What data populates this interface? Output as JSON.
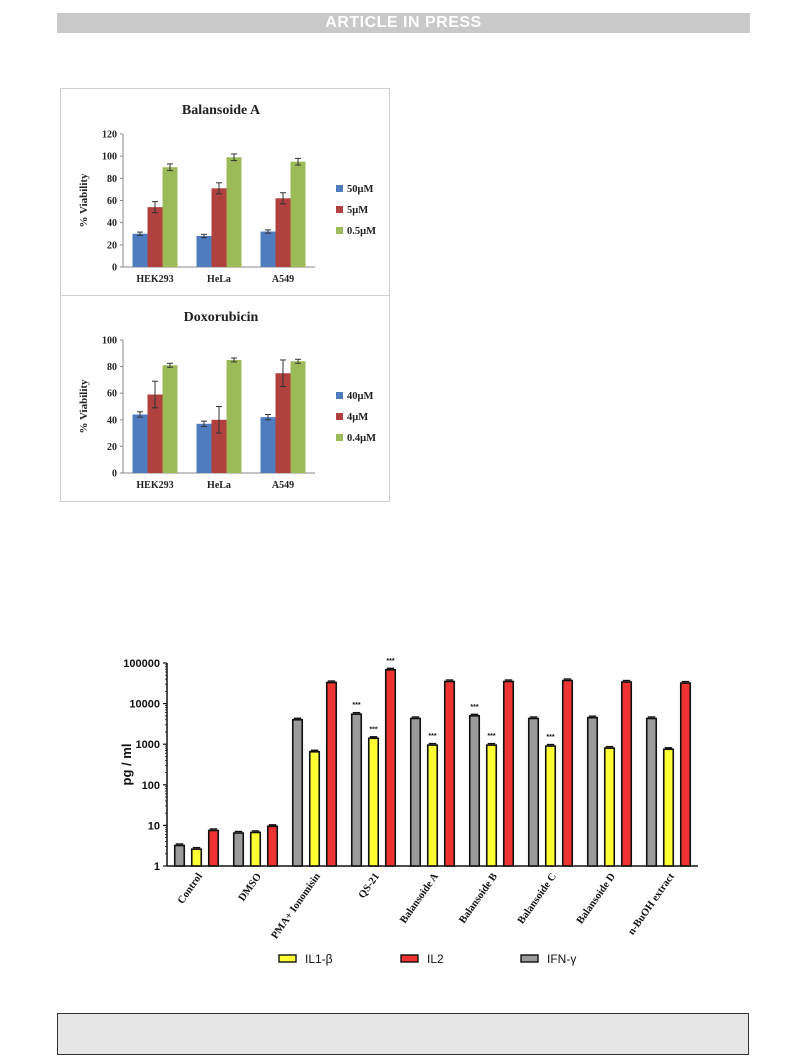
{
  "header": {
    "banner_text": "ARTICLE IN PRESS"
  },
  "colors": {
    "blue": "#4f7bbf",
    "darkred": "#b0413e",
    "green": "#9bbb59",
    "gray": "#9b9b9b",
    "yellow": "#ffff33",
    "red": "#ee3333"
  },
  "chart_data": [
    {
      "type": "bar",
      "title": "Balansoide A",
      "ylabel": "% Viability",
      "xlabel": "",
      "categories": [
        "HEK293",
        "HeLa",
        "A549"
      ],
      "ylim": [
        0,
        120
      ],
      "yticks": [
        "0",
        "20",
        "40",
        "60",
        "80",
        "100",
        "120"
      ],
      "legend_position": "right",
      "grid": false,
      "series": [
        {
          "name": "50μM",
          "color": "#4f7bbf",
          "values": [
            30,
            28,
            32
          ],
          "errors": [
            1.5,
            1.5,
            1.5
          ]
        },
        {
          "name": "5μM",
          "color": "#b0413e",
          "values": [
            54,
            71,
            62
          ],
          "errors": [
            5,
            5,
            5
          ]
        },
        {
          "name": "0.5μM",
          "color": "#9bbb59",
          "values": [
            90,
            99,
            95
          ],
          "errors": [
            3,
            3,
            3
          ]
        }
      ]
    },
    {
      "type": "bar",
      "title": "Doxorubicin",
      "ylabel": "% Viability",
      "xlabel": "",
      "categories": [
        "HEK293",
        "HeLa",
        "A549"
      ],
      "ylim": [
        0,
        100
      ],
      "yticks": [
        "0",
        "20",
        "40",
        "60",
        "80",
        "100"
      ],
      "legend_position": "right",
      "grid": false,
      "series": [
        {
          "name": "40μM",
          "color": "#4f7bbf",
          "values": [
            44,
            37,
            42
          ],
          "errors": [
            2,
            2,
            2
          ]
        },
        {
          "name": "4μM",
          "color": "#b0413e",
          "values": [
            59,
            40,
            75
          ],
          "errors": [
            10,
            10,
            10
          ]
        },
        {
          "name": "0.4μM",
          "color": "#9bbb59",
          "values": [
            81,
            85,
            84
          ],
          "errors": [
            1.5,
            1.5,
            1.5
          ]
        }
      ]
    },
    {
      "type": "bar",
      "title": "",
      "ylabel": "pg / ml",
      "xlabel": "",
      "y_scale": "log",
      "ylim": [
        1,
        100000
      ],
      "yticks": [
        "1",
        "10",
        "100",
        "1000",
        "10000",
        "100000"
      ],
      "categories": [
        "Control",
        "DMSO",
        "PMA+ Ionomisin",
        "QS-21",
        "Balansoide A",
        "Balansoide B",
        "Balansoide C",
        "Balansoide D",
        "n-BuOH extract"
      ],
      "legend_position": "bottom",
      "grid": false,
      "series": [
        {
          "name": "IFN-γ",
          "color": "#9b9b9b",
          "values": [
            3.2,
            6.5,
            4000,
            5500,
            4300,
            5000,
            4300,
            4500,
            4300
          ],
          "stars": [
            "",
            "",
            "",
            "***",
            "",
            "***",
            "",
            "",
            ""
          ]
        },
        {
          "name": "IL1-β",
          "color": "#ffff33",
          "values": [
            2.6,
            6.7,
            650,
            1400,
            950,
            950,
            900,
            800,
            750
          ],
          "stars": [
            "",
            "",
            "",
            "***",
            "***",
            "***",
            "***",
            "",
            ""
          ]
        },
        {
          "name": "IL2",
          "color": "#ee3333",
          "values": [
            7.5,
            9.5,
            33000,
            68000,
            35000,
            35000,
            37000,
            34000,
            32000
          ],
          "stars": [
            "",
            "",
            "",
            "***",
            "",
            "",
            "",
            "",
            ""
          ]
        }
      ],
      "legend_order": [
        "IL1-β",
        "IL2",
        "IFN-γ"
      ]
    }
  ]
}
